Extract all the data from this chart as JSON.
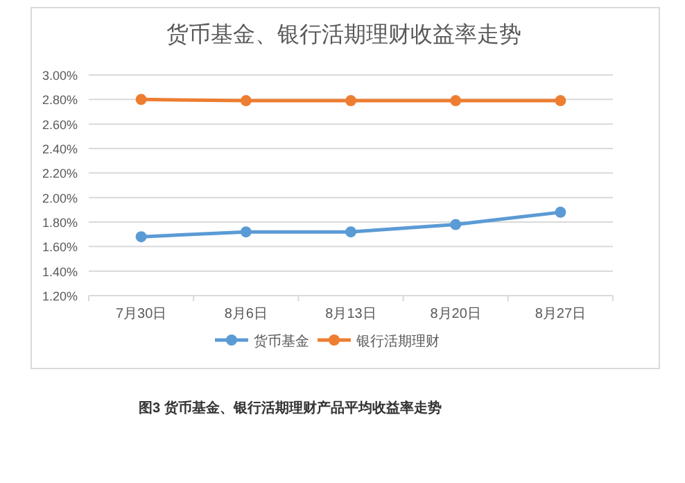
{
  "chart_data": {
    "type": "line",
    "title": "货币基金、银行活期理财收益率走势",
    "categories": [
      "7月30日",
      "8月6日",
      "8月13日",
      "8月20日",
      "8月27日"
    ],
    "series": [
      {
        "name": "货币基金",
        "color": "#5b9bd5",
        "values": [
          1.68,
          1.72,
          1.72,
          1.78,
          1.88
        ]
      },
      {
        "name": "银行活期理财",
        "color": "#ed7d31",
        "values": [
          2.8,
          2.79,
          2.79,
          2.79,
          2.79
        ]
      }
    ],
    "ylim": [
      1.2,
      3.0
    ],
    "yticks": [
      {
        "value": 1.2,
        "label": "1.20%"
      },
      {
        "value": 1.4,
        "label": "1.40%"
      },
      {
        "value": 1.6,
        "label": "1.60%"
      },
      {
        "value": 1.8,
        "label": "1.80%"
      },
      {
        "value": 2.0,
        "label": "2.00%"
      },
      {
        "value": 2.2,
        "label": "2.20%"
      },
      {
        "value": 2.4,
        "label": "2.40%"
      },
      {
        "value": 2.6,
        "label": "2.60%"
      },
      {
        "value": 2.8,
        "label": "2.80%"
      },
      {
        "value": 3.0,
        "label": "3.00%"
      }
    ],
    "grid": "y",
    "legend": "bottom",
    "marker": "circle",
    "line_style": "solid",
    "annotations": [
      "图3  货币基金、银行活期理财产品平均收益率走势"
    ]
  }
}
